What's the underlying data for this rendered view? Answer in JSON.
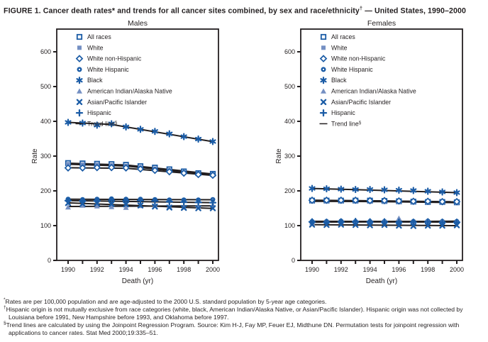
{
  "figure": {
    "title_main": "FIGURE 1. Cancer death rates* and trends for all cancer sites combined, by sex and race/ethnicity",
    "title_sup": "†",
    "title_tail": " — United States, 1990–2000"
  },
  "colors": {
    "dark": "#1b5ca6",
    "light": "#7590c3",
    "black": "#231f20",
    "background": "#ffffff"
  },
  "legend": [
    {
      "label": "All races",
      "marker": "open-square",
      "color": "dark"
    },
    {
      "label": "White",
      "marker": "filled-square",
      "color": "light"
    },
    {
      "label": "White non-Hispanic",
      "marker": "open-diamond",
      "color": "dark"
    },
    {
      "label": "White Hispanic",
      "marker": "donut-circle",
      "color": "dark"
    },
    {
      "label": "Black",
      "marker": "asterisk",
      "color": "dark"
    },
    {
      "label": "American Indian/Alaska Native",
      "marker": "filled-triangle",
      "color": "light"
    },
    {
      "label": "Asian/Pacific Islander",
      "marker": "x-cross",
      "color": "dark"
    },
    {
      "label": "Hispanic",
      "marker": "plus",
      "color": "dark"
    },
    {
      "label": "Trend line",
      "label_sup": "§",
      "marker": "dash",
      "color": "black"
    }
  ],
  "chart_data": [
    {
      "type": "line",
      "title": "Males",
      "xlabel": "Death (yr)",
      "ylabel": "Rate",
      "x": [
        1990,
        1991,
        1992,
        1993,
        1994,
        1995,
        1996,
        1997,
        1998,
        1999,
        2000
      ],
      "xtick_labels": [
        "1990",
        "1992",
        "1994",
        "1996",
        "1998",
        "2000"
      ],
      "ylim": [
        0,
        600
      ],
      "yticks": [
        0,
        100,
        200,
        300,
        400,
        500,
        600
      ],
      "grid": false,
      "legend_position": "top-left-inside",
      "series": [
        {
          "name": "All races",
          "values": [
            280,
            279,
            278,
            277,
            275,
            271,
            267,
            262,
            256,
            251,
            249
          ],
          "trend": [
            [
              1990,
              279.5
            ],
            [
              1994,
              274.5
            ],
            [
              2000,
              248.5
            ]
          ]
        },
        {
          "name": "White",
          "values": [
            277,
            276,
            275,
            274,
            272,
            268,
            264,
            259,
            253,
            248,
            246
          ],
          "trend": [
            [
              1990,
              276.5
            ],
            [
              1994,
              271.5
            ],
            [
              2000,
              245.5
            ]
          ]
        },
        {
          "name": "White non-Hispanic",
          "values": [
            266,
            266,
            267,
            267,
            266,
            263,
            259,
            255,
            251,
            247,
            245
          ],
          "trend": [
            [
              1990,
              266.5
            ],
            [
              1994,
              265
            ],
            [
              2000,
              244.5
            ]
          ]
        },
        {
          "name": "White Hispanic",
          "values": [
            176,
            175,
            176,
            177,
            176,
            176,
            175,
            174,
            174,
            174,
            175
          ],
          "trend": [
            [
              1990,
              176
            ],
            [
              2000,
              174.5
            ]
          ]
        },
        {
          "name": "Black",
          "values": [
            397,
            395,
            389,
            393,
            384,
            377,
            371,
            364,
            356,
            349,
            342
          ],
          "trend": [
            [
              1990,
              397
            ],
            [
              1993,
              391
            ],
            [
              2000,
              341.5
            ]
          ]
        },
        {
          "name": "American Indian/Alaska Native",
          "values": [
            153,
            158,
            156,
            154,
            152,
            157,
            159,
            155,
            153,
            156,
            159
          ],
          "trend": [
            [
              1990,
              155
            ],
            [
              2000,
              157
            ]
          ]
        },
        {
          "name": "Asian/Pacific Islander",
          "values": [
            165,
            163,
            164,
            162,
            161,
            158,
            155,
            152,
            151,
            150,
            150
          ],
          "trend": [
            [
              1990,
              165.5
            ],
            [
              2000,
              149.5
            ]
          ]
        },
        {
          "name": "Hispanic",
          "values": [
            172,
            171,
            172,
            173,
            172,
            172,
            171,
            169,
            168,
            167,
            166
          ],
          "trend": [
            [
              1990,
              172
            ],
            [
              2000,
              166
            ]
          ]
        }
      ]
    },
    {
      "type": "line",
      "title": "Females",
      "xlabel": "Death (yr)",
      "ylabel": "Rate",
      "x": [
        1990,
        1991,
        1992,
        1993,
        1994,
        1995,
        1996,
        1997,
        1998,
        1999,
        2000
      ],
      "xtick_labels": [
        "1990",
        "1992",
        "1994",
        "1996",
        "1998",
        "2000"
      ],
      "ylim": [
        0,
        600
      ],
      "yticks": [
        0,
        100,
        200,
        300,
        400,
        500,
        600
      ],
      "grid": false,
      "legend_position": "top-left-inside",
      "series": [
        {
          "name": "All races",
          "values": [
            172,
            172,
            172,
            172,
            172,
            171,
            170,
            169,
            168,
            168,
            167
          ],
          "trend": [
            [
              1990,
              172.3
            ],
            [
              1995,
              171.3
            ],
            [
              2000,
              167
            ]
          ]
        },
        {
          "name": "White",
          "values": [
            170,
            170,
            170,
            170,
            169,
            169,
            168,
            167,
            167,
            166,
            166
          ],
          "trend": [
            [
              1990,
              170
            ],
            [
              1995,
              169
            ],
            [
              2000,
              166
            ]
          ]
        },
        {
          "name": "White non-Hispanic",
          "values": [
            173,
            173,
            173,
            173,
            172,
            172,
            171,
            170,
            170,
            169,
            169
          ],
          "trend": [
            [
              1990,
              173.2
            ],
            [
              2000,
              168.8
            ]
          ]
        },
        {
          "name": "White Hispanic",
          "values": [
            112,
            112,
            113,
            112,
            112,
            112,
            112,
            112,
            113,
            112,
            112
          ],
          "trend": [
            [
              1990,
              112.4
            ],
            [
              2000,
              112
            ]
          ]
        },
        {
          "name": "Black",
          "values": [
            207,
            206,
            205,
            204,
            204,
            203,
            202,
            201,
            199,
            197,
            195
          ],
          "trend": [
            [
              1990,
              207
            ],
            [
              2000,
              195
            ]
          ]
        },
        {
          "name": "American Indian/Alaska Native",
          "values": [
            108,
            111,
            110,
            112,
            111,
            113,
            121,
            110,
            114,
            113,
            112
          ],
          "trend": [
            [
              1990,
              110
            ],
            [
              2000,
              113
            ]
          ]
        },
        {
          "name": "Asian/Pacific Islander",
          "values": [
            103,
            102,
            103,
            102,
            101,
            102,
            100,
            99,
            100,
            100,
            101
          ],
          "trend": [
            [
              1990,
              102.8
            ],
            [
              2000,
              100
            ]
          ]
        },
        {
          "name": "Hispanic",
          "values": [
            111,
            110,
            111,
            112,
            111,
            111,
            110,
            110,
            111,
            110,
            110
          ],
          "trend": [
            [
              1990,
              111
            ],
            [
              2000,
              110.2
            ]
          ]
        }
      ]
    }
  ],
  "footnotes": [
    {
      "sup": "*",
      "text": "Rates are per 100,000 population and are age-adjusted to the 2000 U.S. standard population by 5-year age categories."
    },
    {
      "sup": "†",
      "text": "Hispanic origin is not mutually exclusive from race categories (white, black, American Indian/Alaska Native, or Asian/Pacific Islander). Hispanic origin was not collected by Louisiana before 1991, New Hampshire before 1993, and Oklahoma before 1997."
    },
    {
      "sup": "§",
      "text": "Trend lines are calculated by using the Joinpoint Regression Program. Source: Kim H-J, Fay MP, Feuer EJ, Midthune DN. Permutation tests for joinpoint regression with applications to cancer rates. Stat Med 2000;19:335–51."
    }
  ]
}
